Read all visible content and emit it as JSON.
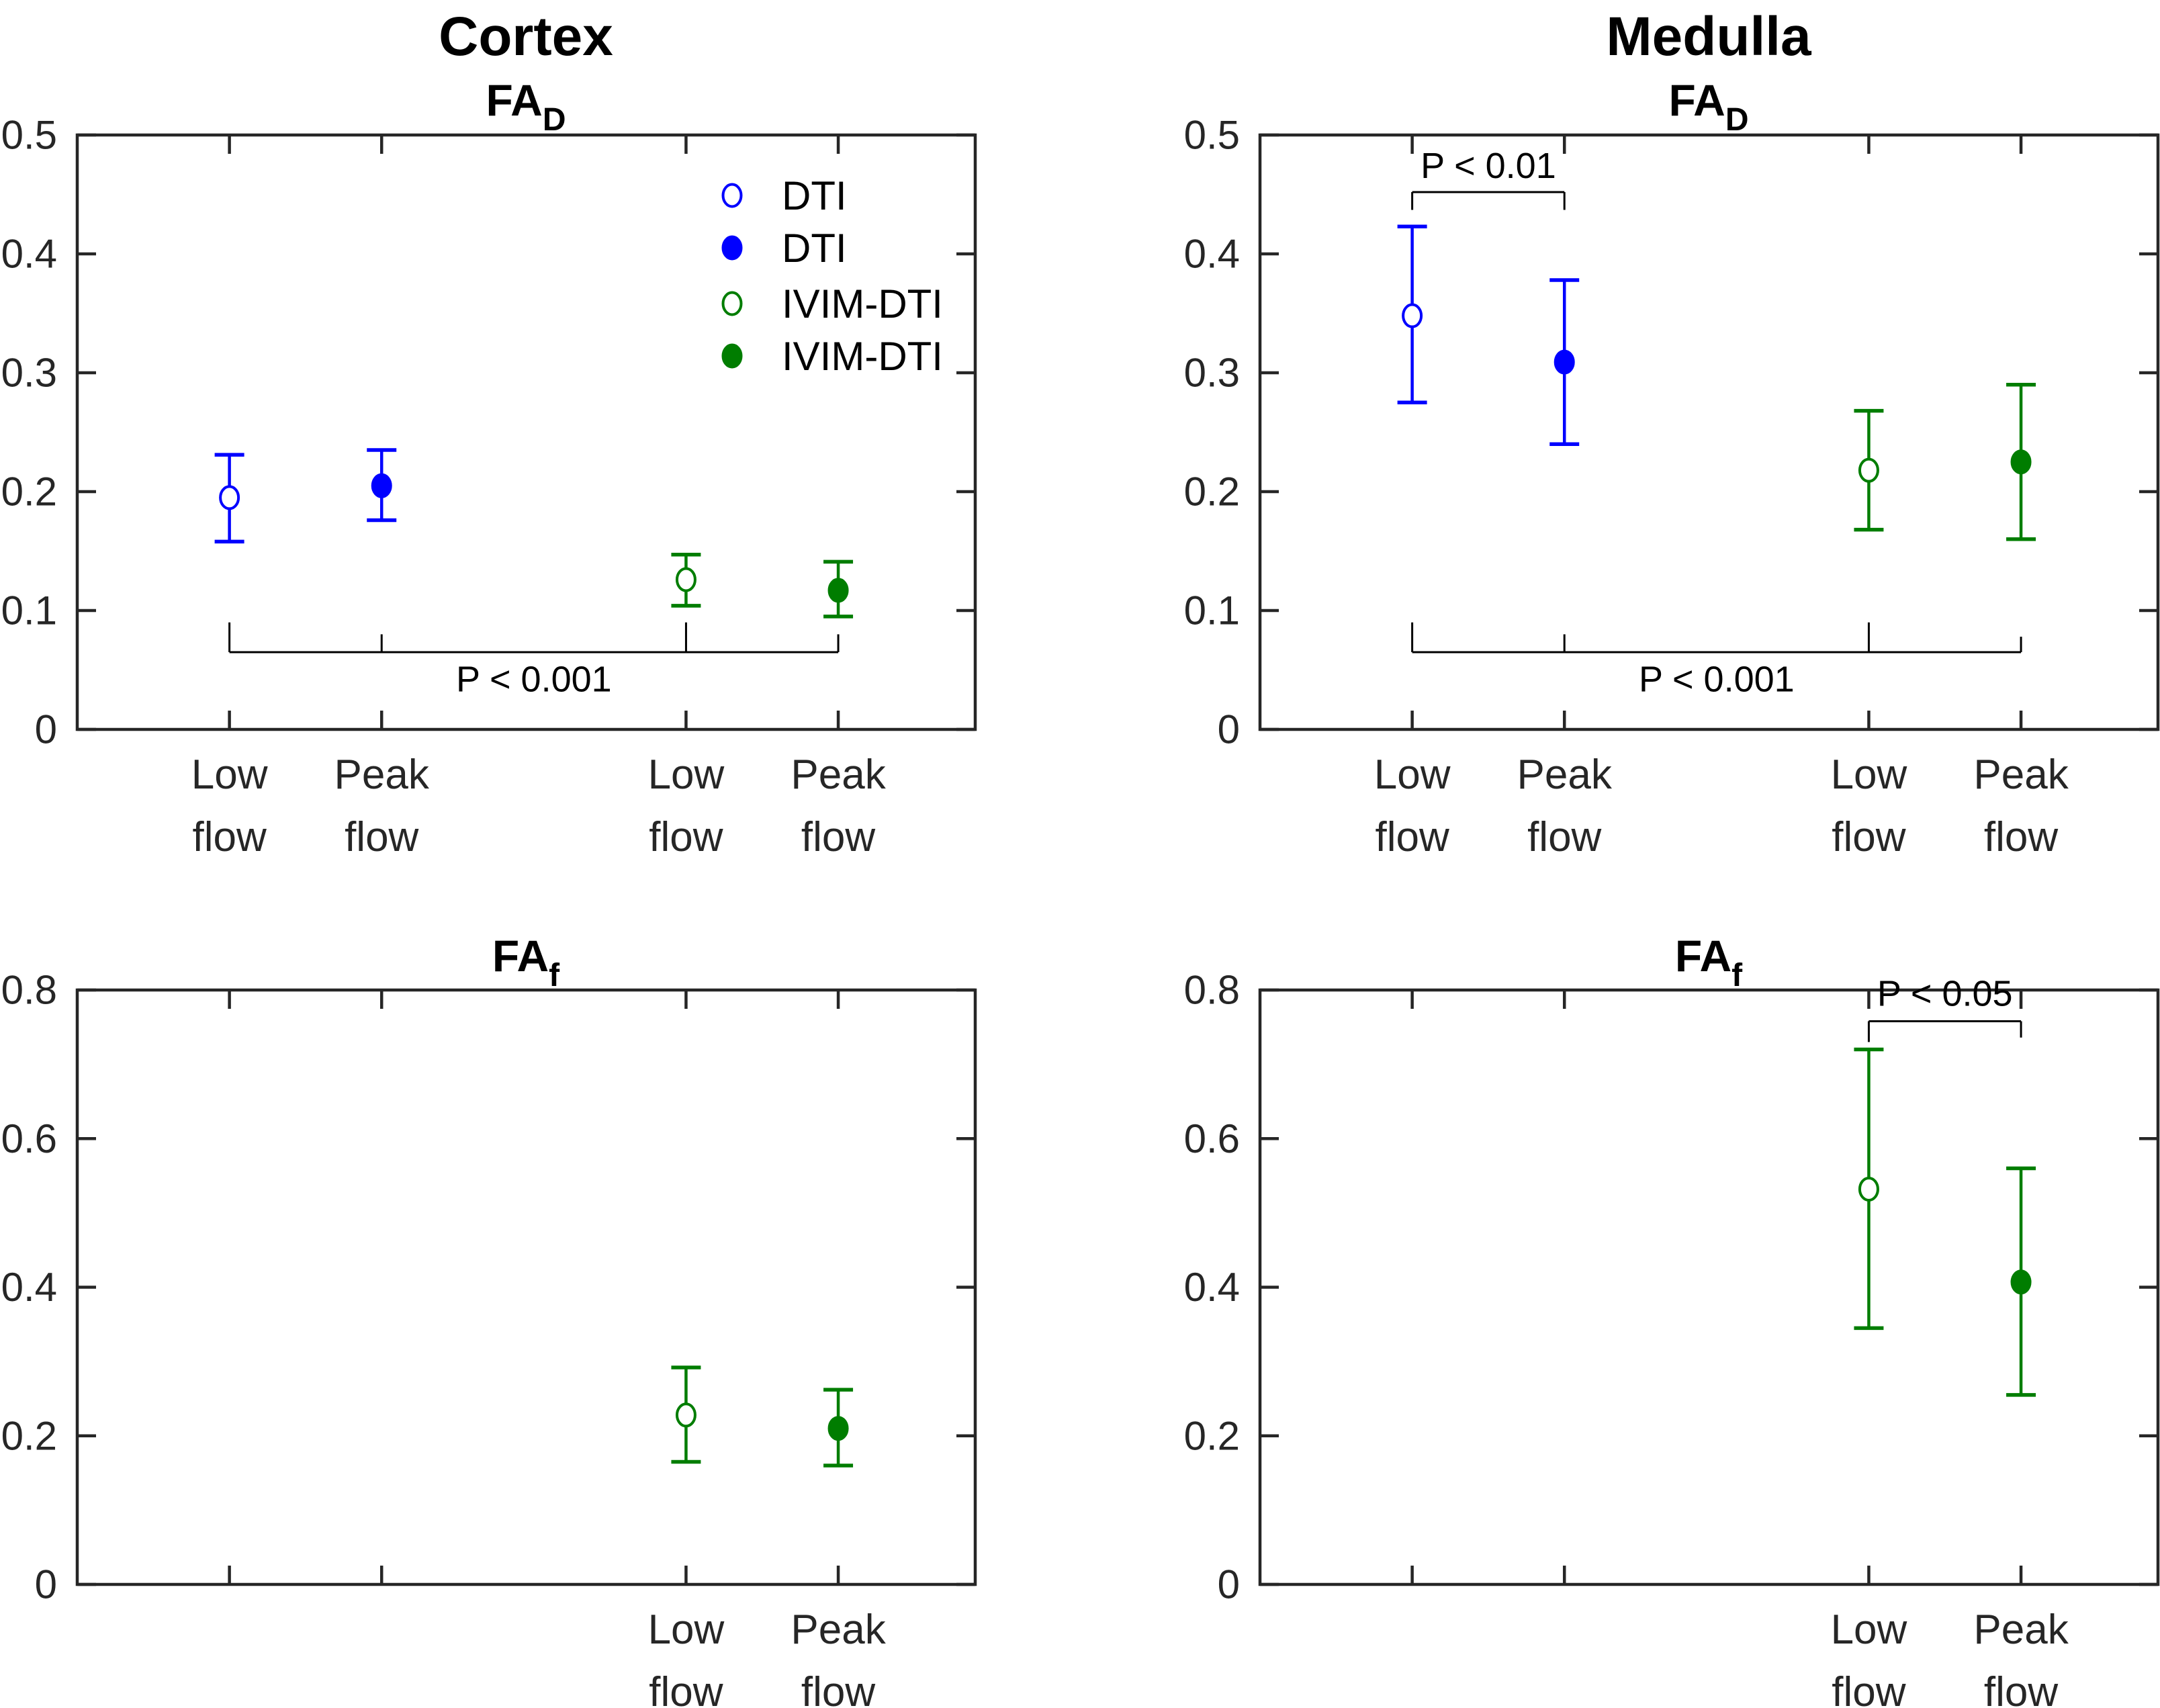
{
  "header": {
    "left_title": "Cortex",
    "right_title": "Medulla"
  },
  "colors": {
    "blue": "#0000ff",
    "green": "#007d00",
    "axis": "#262626",
    "annotation": "#000000",
    "background": "#ffffff"
  },
  "legend": {
    "position": "top-right-of-first-plot",
    "items": [
      {
        "label": "DTI",
        "marker": "open",
        "color_key": "blue"
      },
      {
        "label": "DTI",
        "marker": "filled",
        "color_key": "blue"
      },
      {
        "label": "IVIM-DTI",
        "marker": "open",
        "color_key": "green"
      },
      {
        "label": "IVIM-DTI",
        "marker": "filled",
        "color_key": "green"
      }
    ]
  },
  "chart_data": [
    {
      "id": "cortex-fad",
      "type": "scatter",
      "region": "Cortex",
      "measure_base": "FA",
      "measure_sub": "D",
      "ylim": [
        0,
        0.5
      ],
      "yticks": [
        "0",
        "0.1",
        "0.2",
        "0.3",
        "0.4",
        "0.5"
      ],
      "xlim": [
        0,
        5.9
      ],
      "grid": false,
      "x_ticks": [
        {
          "pos": 1,
          "label": [
            "Low",
            "flow"
          ]
        },
        {
          "pos": 2,
          "label": [
            "Peak",
            "flow"
          ]
        },
        {
          "pos": 4,
          "label": [
            "Low",
            "flow"
          ]
        },
        {
          "pos": 5,
          "label": [
            "Peak",
            "flow"
          ]
        }
      ],
      "series": [
        {
          "name": "DTI",
          "condition": "Low flow",
          "marker": "open",
          "color_key": "blue",
          "x": 1,
          "mean": 0.195,
          "lo": 0.158,
          "hi": 0.231
        },
        {
          "name": "DTI",
          "condition": "Peak flow",
          "marker": "filled",
          "color_key": "blue",
          "x": 2,
          "mean": 0.205,
          "lo": 0.176,
          "hi": 0.235
        },
        {
          "name": "IVIM-DTI",
          "condition": "Low flow",
          "marker": "open",
          "color_key": "green",
          "x": 4,
          "mean": 0.126,
          "lo": 0.104,
          "hi": 0.147
        },
        {
          "name": "IVIM-DTI",
          "condition": "Peak flow",
          "marker": "filled",
          "color_key": "green",
          "x": 5,
          "mean": 0.117,
          "lo": 0.095,
          "hi": 0.141
        }
      ],
      "annotations": [
        {
          "text": "P < 0.001",
          "line_y": 0.065,
          "ticks": [
            {
              "x": 1,
              "y": 0.09
            },
            {
              "x": 2,
              "y": 0.08
            },
            {
              "x": 4,
              "y": 0.09
            },
            {
              "x": 5,
              "y": 0.08
            }
          ],
          "text_x": 3,
          "text_y": 0.042
        }
      ],
      "has_legend": true
    },
    {
      "id": "medulla-fad",
      "type": "scatter",
      "region": "Medulla",
      "measure_base": "FA",
      "measure_sub": "D",
      "ylim": [
        0,
        0.5
      ],
      "yticks": [
        "0",
        "0.1",
        "0.2",
        "0.3",
        "0.4",
        "0.5"
      ],
      "xlim": [
        0,
        5.9
      ],
      "grid": false,
      "x_ticks": [
        {
          "pos": 1,
          "label": [
            "Low",
            "flow"
          ]
        },
        {
          "pos": 2,
          "label": [
            "Peak",
            "flow"
          ]
        },
        {
          "pos": 4,
          "label": [
            "Low",
            "flow"
          ]
        },
        {
          "pos": 5,
          "label": [
            "Peak",
            "flow"
          ]
        }
      ],
      "series": [
        {
          "name": "DTI",
          "condition": "Low flow",
          "marker": "open",
          "color_key": "blue",
          "x": 1,
          "mean": 0.348,
          "lo": 0.275,
          "hi": 0.423
        },
        {
          "name": "DTI",
          "condition": "Peak flow",
          "marker": "filled",
          "color_key": "blue",
          "x": 2,
          "mean": 0.309,
          "lo": 0.24,
          "hi": 0.378
        },
        {
          "name": "IVIM-DTI",
          "condition": "Low flow",
          "marker": "open",
          "color_key": "green",
          "x": 4,
          "mean": 0.218,
          "lo": 0.168,
          "hi": 0.268
        },
        {
          "name": "IVIM-DTI",
          "condition": "Peak flow",
          "marker": "filled",
          "color_key": "green",
          "x": 5,
          "mean": 0.225,
          "lo": 0.16,
          "hi": 0.29
        }
      ],
      "annotations": [
        {
          "text": "P < 0.01",
          "line_y": 0.452,
          "ticks": [
            {
              "x": 1,
              "y": 0.437
            },
            {
              "x": 2,
              "y": 0.437
            }
          ],
          "text_x": 1.5,
          "text_y": 0.474
        },
        {
          "text": "P < 0.001",
          "line_y": 0.065,
          "ticks": [
            {
              "x": 1,
              "y": 0.09
            },
            {
              "x": 2,
              "y": 0.08
            },
            {
              "x": 4,
              "y": 0.09
            },
            {
              "x": 5,
              "y": 0.078
            }
          ],
          "text_x": 3,
          "text_y": 0.042
        }
      ],
      "has_legend": false
    },
    {
      "id": "cortex-faf",
      "type": "scatter",
      "region": "Cortex",
      "measure_base": "FA",
      "measure_sub": "f",
      "ylim": [
        0,
        0.8
      ],
      "yticks": [
        "0",
        "0.2",
        "0.4",
        "0.6",
        "0.8"
      ],
      "xlim": [
        0,
        5.9
      ],
      "grid": false,
      "x_ticks": [
        {
          "pos": 1,
          "label": []
        },
        {
          "pos": 2,
          "label": []
        },
        {
          "pos": 4,
          "label": [
            "Low",
            "flow"
          ]
        },
        {
          "pos": 5,
          "label": [
            "Peak",
            "flow"
          ]
        }
      ],
      "series": [
        {
          "name": "IVIM-DTI",
          "condition": "Low flow",
          "marker": "open",
          "color_key": "green",
          "x": 4,
          "mean": 0.228,
          "lo": 0.165,
          "hi": 0.292
        },
        {
          "name": "IVIM-DTI",
          "condition": "Peak flow",
          "marker": "filled",
          "color_key": "green",
          "x": 5,
          "mean": 0.21,
          "lo": 0.16,
          "hi": 0.262
        }
      ],
      "annotations": [],
      "has_legend": false
    },
    {
      "id": "medulla-faf",
      "type": "scatter",
      "region": "Medulla",
      "measure_base": "FA",
      "measure_sub": "f",
      "ylim": [
        0,
        0.8
      ],
      "yticks": [
        "0",
        "0.2",
        "0.4",
        "0.6",
        "0.8"
      ],
      "xlim": [
        0,
        5.9
      ],
      "grid": false,
      "x_ticks": [
        {
          "pos": 1,
          "label": []
        },
        {
          "pos": 2,
          "label": []
        },
        {
          "pos": 4,
          "label": [
            "Low",
            "flow"
          ]
        },
        {
          "pos": 5,
          "label": [
            "Peak",
            "flow"
          ]
        }
      ],
      "series": [
        {
          "name": "IVIM-DTI",
          "condition": "Low flow",
          "marker": "open",
          "color_key": "green",
          "x": 4,
          "mean": 0.532,
          "lo": 0.345,
          "hi": 0.72
        },
        {
          "name": "IVIM-DTI",
          "condition": "Peak flow",
          "marker": "filled",
          "color_key": "green",
          "x": 5,
          "mean": 0.407,
          "lo": 0.255,
          "hi": 0.56
        }
      ],
      "annotations": [
        {
          "text": "P < 0.05",
          "line_y": 0.758,
          "ticks": [
            {
              "x": 4,
              "y": 0.73
            },
            {
              "x": 5,
              "y": 0.736
            }
          ],
          "text_x": 4.5,
          "text_y": 0.795
        }
      ],
      "has_legend": false
    }
  ]
}
